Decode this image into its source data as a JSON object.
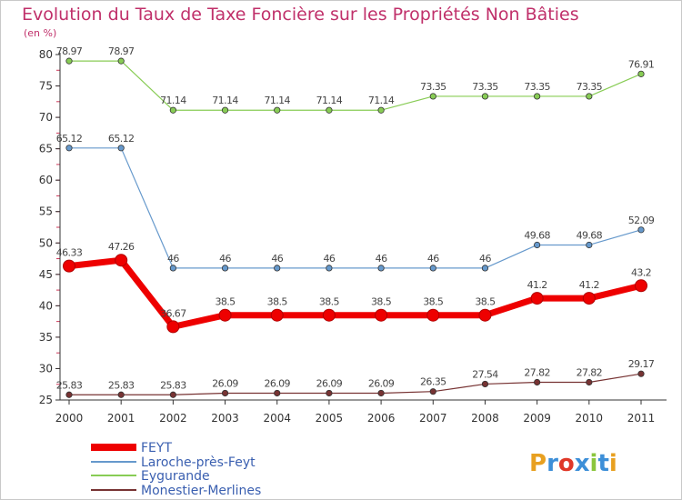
{
  "chart_data": {
    "type": "line",
    "title": "Evolution du Taux de Taxe Foncière sur les Propriétés Non Bâties",
    "ylabel": "(en %)",
    "xlabel": "",
    "ylim": [
      25,
      80
    ],
    "yticks": [
      25,
      30,
      35,
      40,
      45,
      50,
      55,
      60,
      65,
      70,
      75,
      80
    ],
    "categories": [
      "2000",
      "2001",
      "2002",
      "2003",
      "2004",
      "2005",
      "2006",
      "2007",
      "2008",
      "2009",
      "2010",
      "2011"
    ],
    "grid": false,
    "legend_position": "bottom-left",
    "series": [
      {
        "name": "FEYT",
        "color": "#ee0000",
        "values": [
          46.33,
          47.26,
          36.67,
          38.5,
          38.5,
          38.5,
          38.5,
          38.5,
          38.5,
          41.2,
          41.2,
          43.2
        ],
        "labels": [
          "46.33",
          "47.26",
          "36.67",
          "38.5",
          "38.5",
          "38.5",
          "38.5",
          "38.5",
          "38.5",
          "41.2",
          "41.2",
          "43.2"
        ]
      },
      {
        "name": "Laroche-près-Feyt",
        "color": "#6699cc",
        "values": [
          65.12,
          65.12,
          46,
          46,
          46,
          46,
          46,
          46,
          46,
          49.68,
          49.68,
          52.09
        ],
        "labels": [
          "65.12",
          "65.12",
          "46",
          "46",
          "46",
          "46",
          "46",
          "46",
          "46",
          "49.68",
          "49.68",
          "52.09"
        ]
      },
      {
        "name": "Eygurande",
        "color": "#88cc55",
        "values": [
          78.97,
          78.97,
          71.14,
          71.14,
          71.14,
          71.14,
          71.14,
          73.35,
          73.35,
          73.35,
          73.35,
          76.91
        ],
        "labels": [
          "78.97",
          "78.97",
          "71.14",
          "71.14",
          "71.14",
          "71.14",
          "71.14",
          "73.35",
          "73.35",
          "73.35",
          "73.35",
          "76.91"
        ]
      },
      {
        "name": "Monestier-Merlines",
        "color": "#773333",
        "values": [
          25.83,
          25.83,
          25.83,
          26.09,
          26.09,
          26.09,
          26.09,
          26.35,
          27.54,
          27.82,
          27.82,
          29.17
        ],
        "labels": [
          "25.83",
          "25.83",
          "25.83",
          "26.09",
          "26.09",
          "26.09",
          "26.09",
          "26.35",
          "27.54",
          "27.82",
          "27.82",
          "29.17"
        ]
      }
    ]
  },
  "logo": {
    "letters": [
      {
        "char": "P",
        "color": "#e8a020"
      },
      {
        "char": "r",
        "color": "#3d8fd8"
      },
      {
        "char": "o",
        "color": "#e03828"
      },
      {
        "char": "x",
        "color": "#3d8fd8"
      },
      {
        "char": "i",
        "color": "#8cc63e"
      },
      {
        "char": "t",
        "color": "#3d8fd8"
      },
      {
        "char": "i",
        "color": "#e8a020"
      }
    ]
  }
}
